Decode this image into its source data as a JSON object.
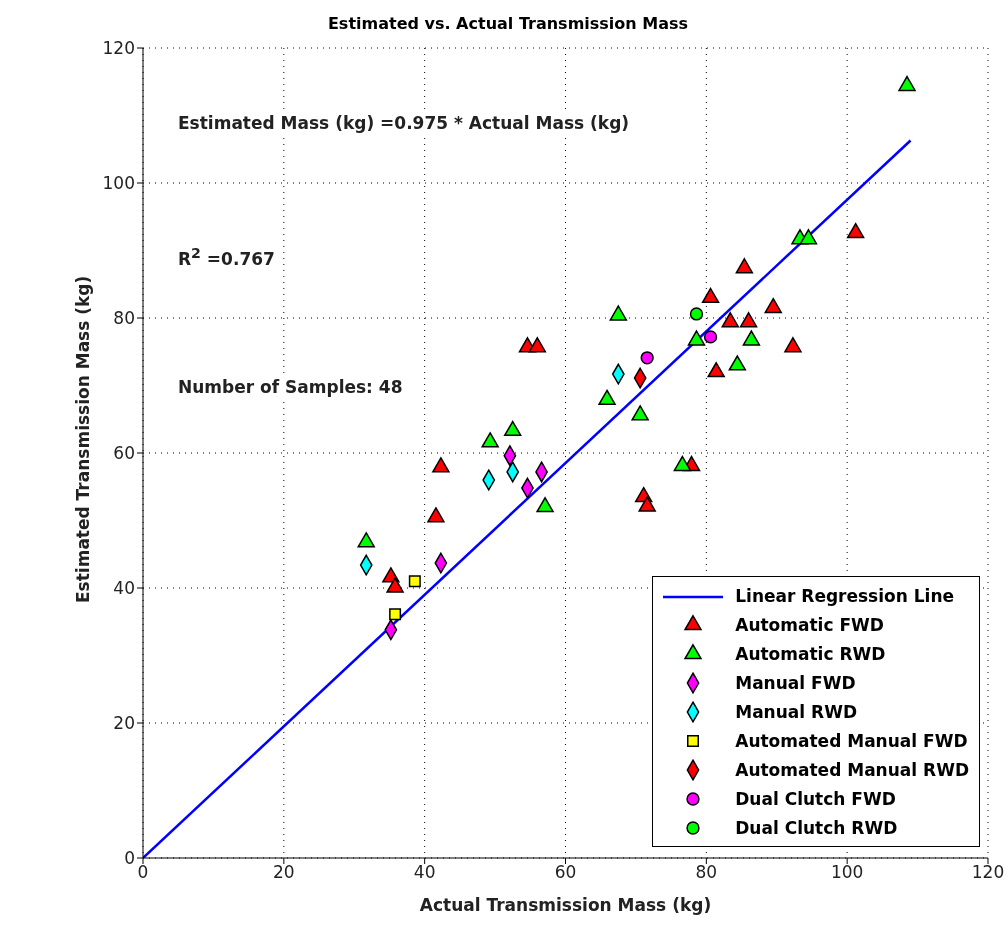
{
  "chart_data": {
    "type": "scatter",
    "title": "Estimated vs. Actual Transmission Mass",
    "xlabel": "Actual Transmission Mass (kg)",
    "ylabel": "Estimated Transmission Mass (kg)",
    "xlim": [
      0,
      120
    ],
    "xticks": [
      0,
      20,
      40,
      60,
      80,
      100,
      120
    ],
    "ylim": [
      0,
      120
    ],
    "yticks": [
      0,
      20,
      40,
      60,
      80,
      100,
      120
    ],
    "grid": true,
    "legend": "bottom right",
    "annotations": [
      "Estimated Mass (kg) =0.975 * Actual Mass (kg)",
      "R$^{2}$ =0.767",
      "Number of Samples: 48"
    ],
    "series": [
      {
        "name": "Linear Regression Line",
        "type": "line",
        "color": "#0000ff",
        "marker": "none",
        "line_style": "solid",
        "x": [
          0,
          109
        ],
        "values": [
          0,
          106.3
        ]
      },
      {
        "name": "Automatic FWD",
        "color": "#ff0000",
        "marker": "triangle",
        "x": [
          85.4,
          80.6,
          89.5,
          83.4,
          86.0,
          92.3,
          81.4,
          101.2,
          71.1,
          71.6,
          77.9,
          54.6,
          56.0,
          42.3,
          41.6,
          35.2,
          35.8
        ],
        "values": [
          87.4,
          83.0,
          81.5,
          79.4,
          79.4,
          75.7,
          72.0,
          92.6,
          53.5,
          52.1,
          58.1,
          75.7,
          75.7,
          57.9,
          50.5,
          41.6,
          40.1
        ]
      },
      {
        "name": "Automatic RWD",
        "color": "#00ff00",
        "marker": "triangle",
        "x": [
          108.5,
          93.3,
          94.5,
          67.5,
          78.6,
          86.4,
          84.4,
          65.9,
          70.6,
          76.6,
          49.3,
          52.5,
          57.1,
          31.7
        ],
        "values": [
          114.4,
          91.7,
          91.7,
          80.4,
          76.7,
          76.7,
          73.0,
          67.9,
          65.6,
          58.1,
          61.6,
          63.3,
          52.0,
          46.8
        ]
      },
      {
        "name": "Manual FWD",
        "color": "#ff00ff",
        "marker": "diamond",
        "x": [
          52.1,
          56.6,
          54.6,
          42.3,
          35.2
        ],
        "values": [
          59.6,
          57.2,
          54.8,
          43.7,
          33.8
        ]
      },
      {
        "name": "Manual RWD",
        "color": "#00ffff",
        "marker": "diamond",
        "x": [
          49.1,
          52.5,
          31.7,
          67.5
        ],
        "values": [
          56.0,
          57.2,
          43.4,
          71.7
        ]
      },
      {
        "name": "Automated Manual FWD",
        "color": "#ffff00",
        "marker": "square",
        "x": [
          38.6,
          35.8
        ],
        "values": [
          41.0,
          36.1
        ]
      },
      {
        "name": "Automated Manual RWD",
        "color": "#ff0000",
        "marker": "diamond",
        "x": [
          70.6
        ],
        "values": [
          71.1
        ]
      },
      {
        "name": "Dual Clutch FWD",
        "color": "#ff00ff",
        "marker": "circle",
        "x": [
          71.6,
          80.6
        ],
        "values": [
          74.1,
          77.2
        ]
      },
      {
        "name": "Dual Clutch RWD",
        "color": "#00ff00",
        "marker": "circle",
        "x": [
          78.6
        ],
        "values": [
          80.6
        ]
      }
    ]
  }
}
